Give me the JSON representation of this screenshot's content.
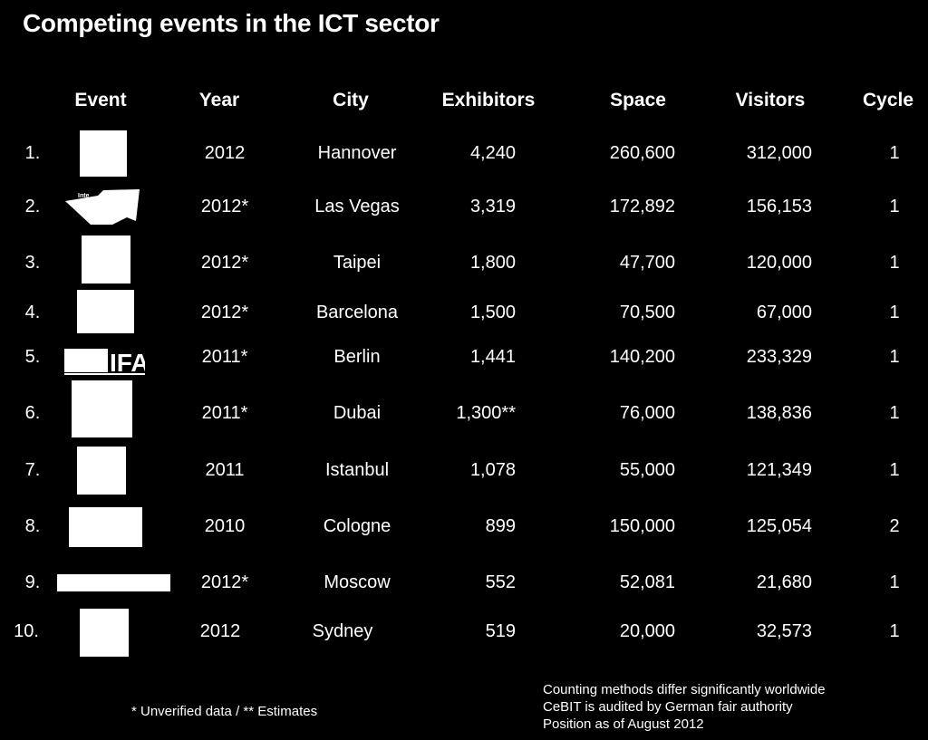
{
  "title": "Competing events in the ICT sector",
  "headers": {
    "event": "Event",
    "year": "Year",
    "city": "City",
    "exhibitors": "Exhibitors",
    "space": "Space",
    "visitors": "Visitors",
    "cycle": "Cycle"
  },
  "rows": [
    {
      "rank": "1.",
      "year": "2012",
      "city": "Hannover",
      "exhibitors": "4,240",
      "space": "260,600",
      "visitors": "312,000",
      "cycle": "1"
    },
    {
      "rank": "2.",
      "year": "2012*",
      "city": "Las Vegas",
      "exhibitors": "3,319",
      "space": "172,892",
      "visitors": "156,153",
      "cycle": "1"
    },
    {
      "rank": "3.",
      "year": "2012*",
      "city": "Taipei",
      "exhibitors": "1,800",
      "space": "47,700",
      "visitors": "120,000",
      "cycle": "1"
    },
    {
      "rank": "4.",
      "year": "2012*",
      "city": "Barcelona",
      "exhibitors": "1,500",
      "space": "70,500",
      "visitors": "67,000",
      "cycle": "1"
    },
    {
      "rank": "5.",
      "year": "2011*",
      "city": "Berlin",
      "exhibitors": "1,441",
      "space": "140,200",
      "visitors": "233,329",
      "cycle": "1"
    },
    {
      "rank": "6.",
      "year": "2011*",
      "city": "Dubai",
      "exhibitors": "1,300**",
      "space": "76,000",
      "visitors": "138,836",
      "cycle": "1"
    },
    {
      "rank": "7.",
      "year": "2011",
      "city": "Istanbul",
      "exhibitors": "1,078",
      "space": "55,000",
      "visitors": "121,349",
      "cycle": "1"
    },
    {
      "rank": "8.",
      "year": "2010",
      "city": "Cologne",
      "exhibitors": "899",
      "space": "150,000",
      "visitors": "125,054",
      "cycle": "2"
    },
    {
      "rank": "9.",
      "year": "2012*",
      "city": "Moscow",
      "exhibitors": "552",
      "space": "52,081",
      "visitors": "21,680",
      "cycle": "1"
    },
    {
      "rank": "10.",
      "year": "2012",
      "city": "Sydney",
      "exhibitors": "519",
      "space": "20,000",
      "visitors": "32,573",
      "cycle": "1"
    }
  ],
  "logos": {
    "ifa_text": "IFA",
    "ces_text": "Inte"
  },
  "footnote": "* Unverified data /  ** Estimates",
  "notes": [
    "Counting methods differ significantly worldwide",
    "CeBIT is audited by German fair authority",
    "Position as of August 2012"
  ]
}
